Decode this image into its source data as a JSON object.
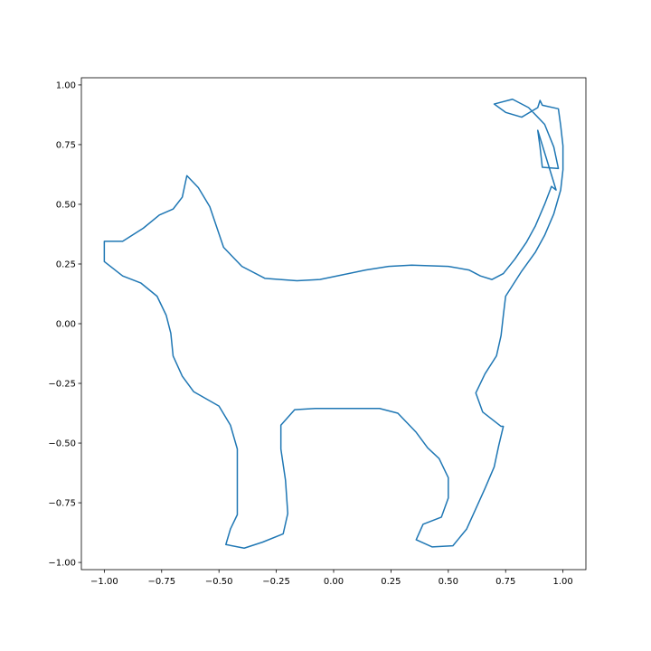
{
  "chart_data": {
    "type": "line",
    "title": "",
    "xlabel": "",
    "ylabel": "",
    "xlim": [
      -1.1,
      1.1
    ],
    "ylim": [
      -1.03,
      1.03
    ],
    "grid": false,
    "legend": "none",
    "colors": {
      "series": "#1f77b4",
      "axes": "#000000",
      "background": "#ffffff"
    },
    "x_ticks": [
      -1.0,
      -0.75,
      -0.5,
      -0.25,
      0.0,
      0.25,
      0.5,
      0.75,
      1.0
    ],
    "x_tick_labels": [
      "−1.00",
      "−0.75",
      "−0.50",
      "−0.25",
      "0.00",
      "0.25",
      "0.50",
      "0.75",
      "1.00"
    ],
    "y_ticks": [
      -1.0,
      -0.75,
      -0.5,
      -0.25,
      0.0,
      0.25,
      0.5,
      0.75,
      1.0
    ],
    "y_tick_labels": [
      "−1.00",
      "−0.75",
      "−0.50",
      "−0.25",
      "0.00",
      "0.25",
      "0.50",
      "0.75",
      "1.00"
    ],
    "series": [
      {
        "x": [
          0.11,
          0.2,
          0.28,
          0.36,
          0.41,
          0.46,
          0.5,
          0.5,
          0.47,
          0.39,
          0.36,
          0.43,
          0.52,
          0.58,
          0.62,
          0.66,
          0.7,
          0.72,
          0.74,
          0.73,
          0.65,
          0.62,
          0.66,
          0.71,
          0.73,
          0.74,
          0.75,
          0.82,
          0.88,
          0.92,
          0.96,
          0.99,
          1.0,
          1.0,
          0.99,
          0.98,
          0.91,
          0.9,
          0.89,
          0.82,
          0.75,
          0.7,
          0.78,
          0.85,
          0.92,
          0.96,
          0.98,
          0.91,
          0.9,
          0.89,
          0.97,
          0.95,
          0.92,
          0.88,
          0.84,
          0.79,
          0.74,
          0.69,
          0.64,
          0.59,
          0.5,
          0.34,
          0.24,
          0.14,
          0.04,
          -0.06,
          -0.16,
          -0.3,
          -0.4,
          -0.48,
          -0.54,
          -0.59,
          -0.64,
          -0.66,
          -0.7,
          -0.76,
          -0.83,
          -0.92,
          -1.0,
          -1.0,
          -0.92,
          -0.84,
          -0.77,
          -0.73,
          -0.71,
          -0.7,
          -0.66,
          -0.61,
          -0.5,
          -0.45,
          -0.42,
          -0.42,
          -0.42,
          -0.42,
          -0.45,
          -0.47,
          -0.39,
          -0.31,
          -0.22,
          -0.2,
          -0.21,
          -0.23,
          -0.23,
          -0.17,
          -0.08,
          0.11
        ],
        "y": [
          -0.355,
          -0.355,
          -0.375,
          -0.455,
          -0.52,
          -0.565,
          -0.645,
          -0.73,
          -0.81,
          -0.84,
          -0.905,
          -0.935,
          -0.93,
          -0.86,
          -0.775,
          -0.69,
          -0.6,
          -0.51,
          -0.43,
          -0.43,
          -0.37,
          -0.29,
          -0.21,
          -0.135,
          -0.05,
          0.035,
          0.115,
          0.22,
          0.3,
          0.37,
          0.46,
          0.56,
          0.645,
          0.745,
          0.83,
          0.9,
          0.915,
          0.935,
          0.905,
          0.865,
          0.885,
          0.92,
          0.94,
          0.905,
          0.835,
          0.74,
          0.65,
          0.655,
          0.74,
          0.81,
          0.56,
          0.575,
          0.5,
          0.41,
          0.34,
          0.27,
          0.21,
          0.185,
          0.2,
          0.225,
          0.24,
          0.245,
          0.24,
          0.225,
          0.205,
          0.185,
          0.18,
          0.19,
          0.24,
          0.32,
          0.49,
          0.57,
          0.62,
          0.53,
          0.48,
          0.455,
          0.4,
          0.345,
          0.345,
          0.26,
          0.2,
          0.17,
          0.115,
          0.035,
          -0.04,
          -0.135,
          -0.22,
          -0.285,
          -0.345,
          -0.425,
          -0.525,
          -0.63,
          -0.71,
          -0.8,
          -0.86,
          -0.925,
          -0.94,
          -0.915,
          -0.88,
          -0.795,
          -0.655,
          -0.525,
          -0.425,
          -0.36,
          -0.355,
          -0.355
        ]
      }
    ]
  }
}
